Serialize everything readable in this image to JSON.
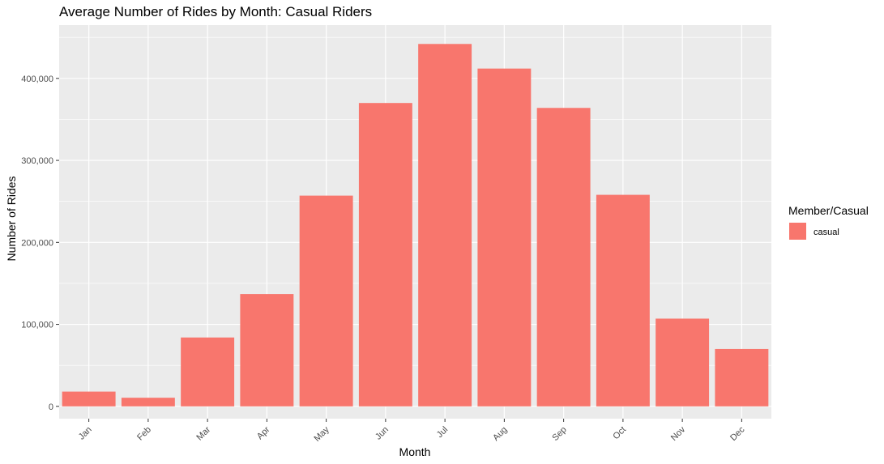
{
  "chart_data": {
    "type": "bar",
    "title": "Average Number of Rides by Month: Casual Riders",
    "xlabel": "Month",
    "ylabel": "Number of Rides",
    "categories": [
      "Jan",
      "Feb",
      "Mar",
      "Apr",
      "May",
      "Jun",
      "Jul",
      "Aug",
      "Sep",
      "Oct",
      "Nov",
      "Dec"
    ],
    "series": [
      {
        "name": "casual",
        "values": [
          18000,
          10500,
          84000,
          137000,
          257000,
          370000,
          442000,
          412000,
          364000,
          258000,
          107000,
          70000
        ]
      }
    ],
    "ylim": [
      -15000,
      465000
    ],
    "yticks": [
      0,
      100000,
      200000,
      300000,
      400000
    ],
    "ytick_labels": [
      "0",
      "100,000",
      "200,000",
      "300,000",
      "400,000"
    ],
    "grid": true,
    "legend": {
      "title": "Member/Casual",
      "position": "right"
    },
    "colors": {
      "bar": "#F8766D",
      "panel": "#EBEBEB",
      "grid": "#FFFFFF"
    }
  }
}
